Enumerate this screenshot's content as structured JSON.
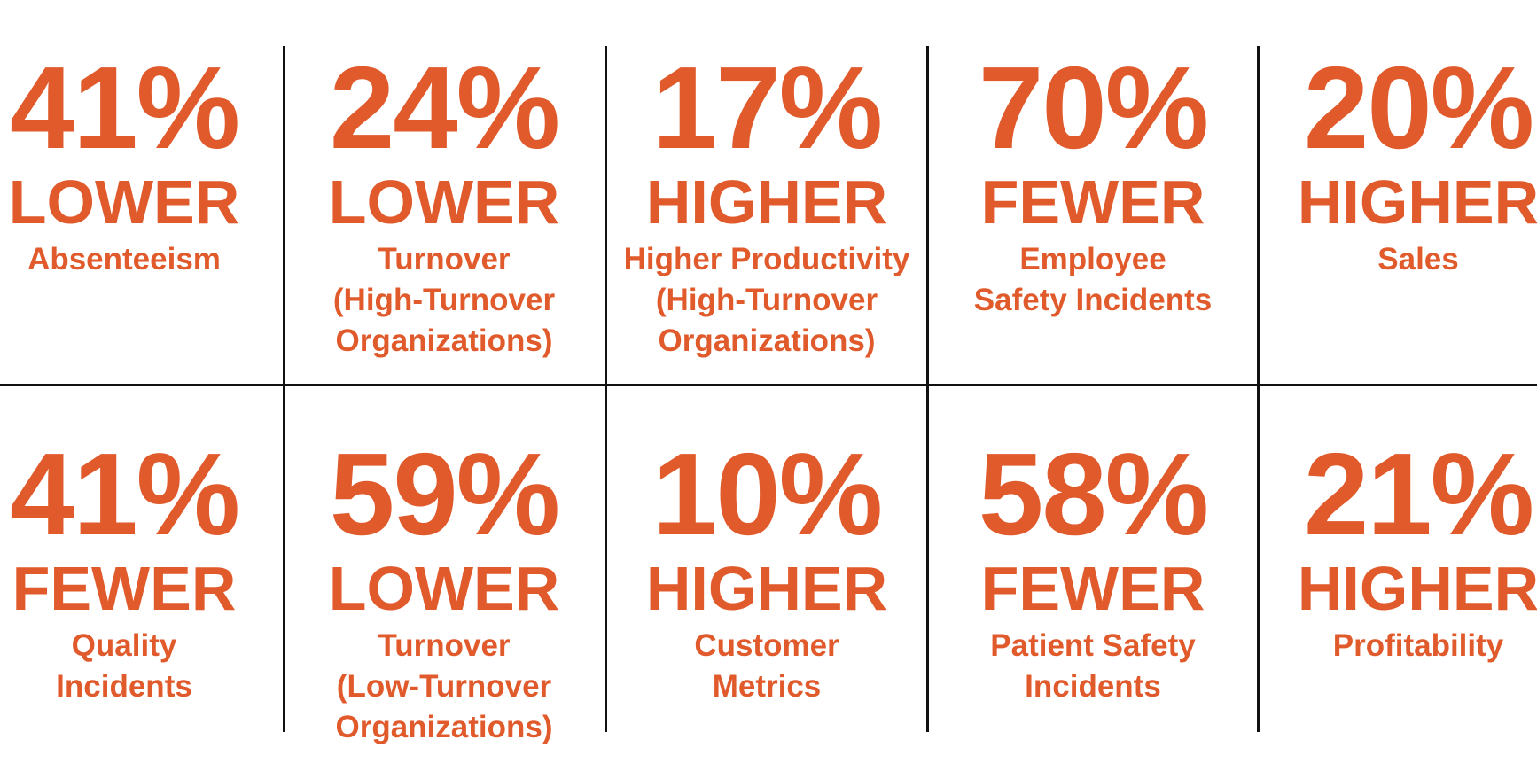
{
  "colors": {
    "accent": "#E05A2B",
    "divider": "#111111",
    "background": "#ffffff"
  },
  "rows": [
    {
      "stats": [
        {
          "value": "41%",
          "direction": "LOWER",
          "label": "Absenteeism"
        },
        {
          "value": "24%",
          "direction": "LOWER",
          "label": "Turnover\n(High-Turnover\nOrganizations)"
        },
        {
          "value": "17%",
          "direction": "HIGHER",
          "label": "Higher Productivity\n(High-Turnover\nOrganizations)"
        },
        {
          "value": "70%",
          "direction": "FEWER",
          "label": "Employee\nSafety Incidents"
        },
        {
          "value": "20%",
          "direction": "HIGHER",
          "label": "Sales"
        }
      ]
    },
    {
      "stats": [
        {
          "value": "41%",
          "direction": "FEWER",
          "label": "Quality\nIncidents"
        },
        {
          "value": "59%",
          "direction": "LOWER",
          "label": "Turnover\n(Low-Turnover\nOrganizations)"
        },
        {
          "value": "10%",
          "direction": "HIGHER",
          "label": "Customer\nMetrics"
        },
        {
          "value": "58%",
          "direction": "FEWER",
          "label": "Patient Safety\nIncidents"
        },
        {
          "value": "21%",
          "direction": "HIGHER",
          "label": "Profitability"
        }
      ]
    }
  ]
}
